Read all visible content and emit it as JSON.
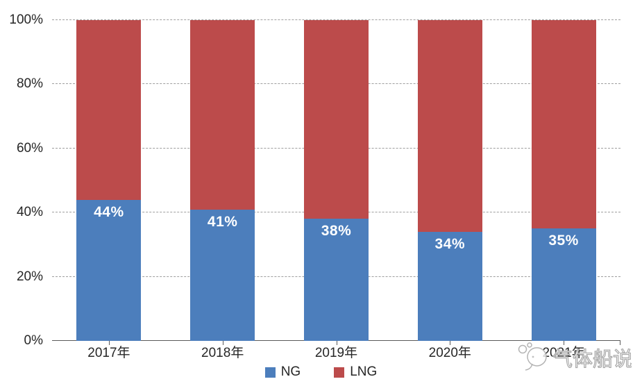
{
  "page": {
    "background": "#FFFFFF"
  },
  "chart_data": {
    "type": "bar",
    "stacked": true,
    "units": "percent",
    "title": "",
    "xlabel": "",
    "ylabel": "",
    "categories": [
      "2017年",
      "2018年",
      "2019年",
      "2020年",
      "2021年"
    ],
    "series": [
      {
        "name": "NG",
        "color": "#4C7EBC",
        "values": [
          44,
          41,
          38,
          34,
          35
        ]
      },
      {
        "name": "LNG",
        "color": "#BC4B4B",
        "values": [
          56,
          59,
          62,
          66,
          65
        ]
      }
    ],
    "data_labels": {
      "on_series": "NG",
      "values": [
        "44%",
        "41%",
        "38%",
        "34%",
        "35%"
      ],
      "color": "#FFFFFF"
    },
    "ylim": [
      0,
      100
    ],
    "y_ticks": [
      "0%",
      "20%",
      "40%",
      "60%",
      "80%",
      "100%"
    ],
    "grid": "horizontal-dashed",
    "grid_color": "#9E9E9E",
    "axis_color": "#595959",
    "tick_label_color": "#262626",
    "legend_position": "bottom-center"
  },
  "legend": {
    "items": [
      {
        "label": "NG",
        "color": "#4C7EBC"
      },
      {
        "label": "LNG",
        "color": "#BC4B4B"
      }
    ]
  },
  "watermark": {
    "text": "气体船说",
    "logo": "whale-bubbles-logo"
  }
}
